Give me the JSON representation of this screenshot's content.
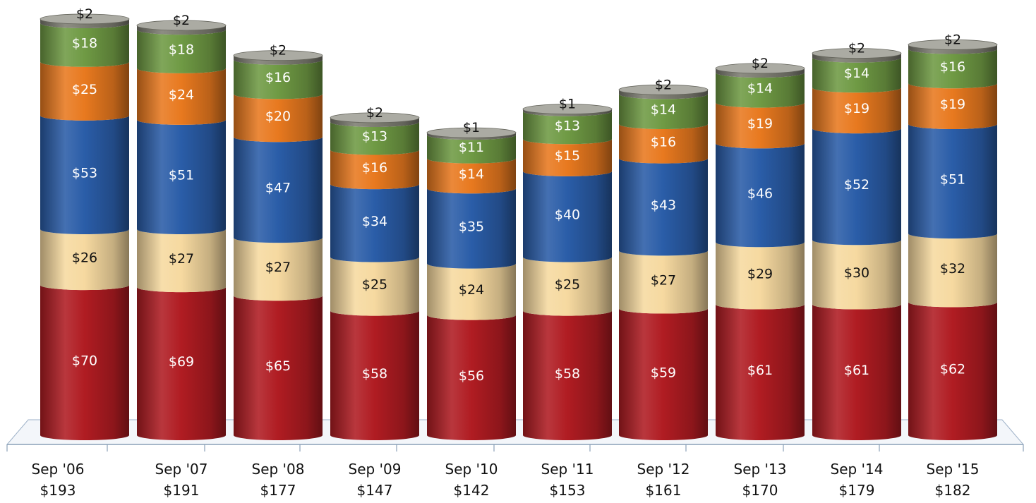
{
  "chart_data": {
    "type": "bar",
    "stacked": true,
    "style": "3d-cylinder",
    "title": "",
    "xlabel": "",
    "ylabel": "",
    "ylim": [
      0,
      200
    ],
    "grid": false,
    "categories": [
      "Sep '06",
      "Sep '07",
      "Sep '08",
      "Sep '09",
      "Sep '10",
      "Sep '11",
      "Sep '12",
      "Sep '13",
      "Sep '14",
      "Sep '15"
    ],
    "totals": [
      193,
      191,
      177,
      147,
      142,
      153,
      161,
      170,
      179,
      182
    ],
    "total_labels": [
      "$193",
      "$191",
      "$177",
      "$147",
      "$142",
      "$153",
      "$161",
      "$170",
      "$179",
      "$182"
    ],
    "series": [
      {
        "color": "#b01c22",
        "label_color": "#ffffff",
        "values": [
          70,
          69,
          65,
          58,
          56,
          58,
          59,
          61,
          61,
          62
        ],
        "labels": [
          "$70",
          "$69",
          "$65",
          "$58",
          "$56",
          "$58",
          "$59",
          "$61",
          "$61",
          "$62"
        ]
      },
      {
        "color": "#f6d9a0",
        "label_color": "#111111",
        "values": [
          26,
          27,
          27,
          25,
          24,
          25,
          27,
          29,
          30,
          32
        ],
        "labels": [
          "$26",
          "$27",
          "$27",
          "$25",
          "$24",
          "$25",
          "$27",
          "$29",
          "$30",
          "$32"
        ]
      },
      {
        "color": "#2a5da8",
        "label_color": "#ffffff",
        "values": [
          53,
          51,
          47,
          34,
          35,
          40,
          43,
          46,
          52,
          51
        ],
        "labels": [
          "$53",
          "$51",
          "$47",
          "$34",
          "$35",
          "$40",
          "$43",
          "$46",
          "$52",
          "$51"
        ]
      },
      {
        "color": "#e8791f",
        "label_color": "#ffffff",
        "values": [
          25,
          24,
          20,
          16,
          14,
          15,
          16,
          19,
          19,
          19
        ],
        "labels": [
          "$25",
          "$24",
          "$20",
          "$16",
          "$14",
          "$15",
          "$16",
          "$19",
          "$19",
          "$19"
        ]
      },
      {
        "color": "#6f9a44",
        "label_color": "#ffffff",
        "values": [
          18,
          18,
          16,
          13,
          11,
          13,
          14,
          14,
          14,
          16
        ],
        "labels": [
          "$18",
          "$18",
          "$16",
          "$13",
          "$11",
          "$13",
          "$14",
          "$14",
          "$14",
          "$16"
        ]
      },
      {
        "color": "#7d7d72",
        "label_color": "#111111",
        "values": [
          2,
          2,
          2,
          2,
          1,
          1,
          2,
          2,
          2,
          2
        ],
        "labels": [
          "$2",
          "$2",
          "$2",
          "$2",
          "$1",
          "$1",
          "$2",
          "$2",
          "$2",
          "$2"
        ]
      }
    ]
  }
}
